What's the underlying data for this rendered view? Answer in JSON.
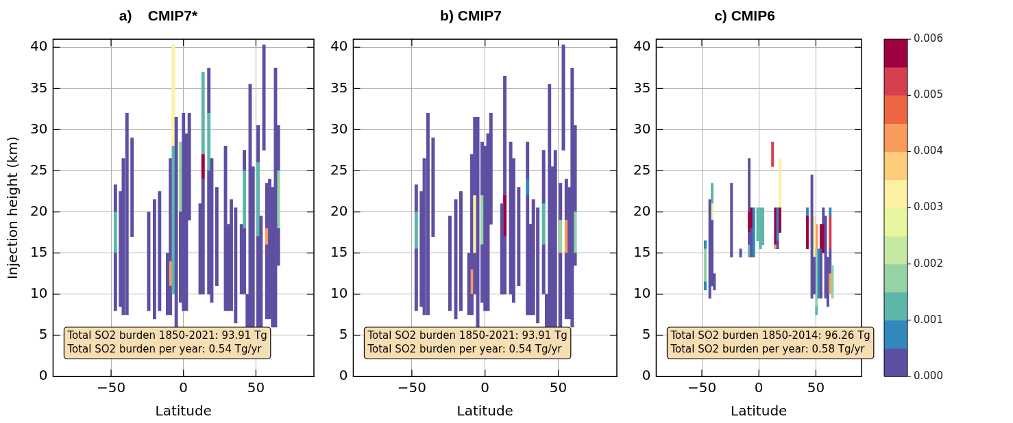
{
  "chart_data": [
    {
      "type": "bar",
      "title": "a)    CMIP7*",
      "xlabel": "Latitude",
      "ylabel": "Injection height (km)",
      "xlim": [
        -90,
        90
      ],
      "xticks": [
        -50,
        0,
        50
      ],
      "ylim": [
        0,
        41
      ],
      "yticks": [
        0,
        5,
        10,
        15,
        20,
        25,
        30,
        35,
        40
      ],
      "grid": true,
      "annotations": [
        "Total SO2 burden 1850-2021: 93.91 Tg",
        "Total SO2 burden per year: 0.54 Tg/yr"
      ],
      "x": [
        -47,
        -43.5,
        -41.5,
        -39,
        -35.5,
        -24,
        -20,
        -16.5,
        -11,
        -9,
        -7,
        -5,
        -2,
        0,
        2,
        4,
        11.5,
        13.5,
        17.5,
        19.5,
        23,
        29,
        31,
        33,
        36,
        40,
        42,
        44,
        46,
        48,
        51.5,
        53.5,
        55.5,
        57.5,
        59.5,
        61.5,
        63.5,
        65.5
      ],
      "series": [
        {
          "base": [
            8,
            8.5,
            7.5,
            7.5,
            17,
            8,
            7,
            8,
            7.5,
            7.5,
            10,
            6,
            9,
            8,
            8,
            19,
            10,
            10,
            10,
            9,
            11,
            8,
            8,
            8,
            6.5,
            10,
            10,
            6,
            6,
            6,
            6,
            6,
            27.5,
            7,
            7,
            6,
            6,
            13.5
          ],
          "values": [
            7,
            14,
            19,
            24.5,
            12,
            12,
            14.5,
            14.5,
            7.5,
            3.5,
            18,
            25.5,
            11,
            24,
            21.5,
            13,
            11,
            14,
            15,
            17.5,
            12,
            20,
            10.5,
            13.5,
            14,
            8.5,
            8,
            4,
            29.5,
            19.5,
            11,
            13.5,
            12.8,
            9,
            17,
            17,
            31.5,
            4.5
          ],
          "colors": [
            "#5e4fa2",
            "#5e4fa2",
            "#5e4fa2",
            "#5e4fa2",
            "#5e4fa2",
            "#5e4fa2",
            "#5e4fa2",
            "#5e4fa2",
            "#5e4fa2",
            "#5e4fa2",
            "#5db7a9",
            "#5e4fa2",
            "#5e4fa2",
            "#5e4fa2",
            "#5e4fa2",
            "#5e4fa2",
            "#5e4fa2",
            "#5e4fa2",
            "#5e4fa2",
            "#5e4fa2",
            "#5e4fa2",
            "#5e4fa2",
            "#5e4fa2",
            "#5e4fa2",
            "#5e4fa2",
            "#5e4fa2",
            "#5e4fa2",
            "#5e4fa2",
            "#5e4fa2",
            "#5e4fa2",
            "#5e4fa2",
            "#5e4fa2",
            "#5e4fa2",
            "#5e4fa2",
            "#5e4fa2",
            "#5e4fa2",
            "#5e4fa2",
            "#5e4fa2"
          ]
        },
        {
          "base": [
            15,
            null,
            null,
            null,
            null,
            null,
            null,
            null,
            null,
            11,
            28,
            null,
            20,
            null,
            null,
            null,
            null,
            24,
            25,
            null,
            null,
            null,
            null,
            null,
            null,
            null,
            18,
            null,
            null,
            null,
            17,
            null,
            null,
            16,
            null,
            null,
            null,
            18
          ],
          "values": [
            5,
            null,
            null,
            null,
            null,
            null,
            null,
            null,
            null,
            3,
            12.3,
            null,
            8.5,
            null,
            null,
            null,
            null,
            3,
            7,
            null,
            null,
            null,
            null,
            null,
            null,
            null,
            7,
            null,
            null,
            null,
            9,
            null,
            null,
            2,
            null,
            null,
            null,
            7
          ],
          "colors": [
            "#5db7a9",
            null,
            null,
            null,
            null,
            null,
            null,
            null,
            null,
            "#f99b5a",
            "#fdf1a4",
            null,
            "#94d4a4",
            null,
            null,
            null,
            null,
            "#9e0142",
            "#5db7a9",
            null,
            null,
            null,
            null,
            null,
            null,
            null,
            "#5db7a9",
            null,
            null,
            null,
            "#5db7a9",
            null,
            null,
            "#f99b5a",
            null,
            null,
            null,
            "#94d4a4"
          ]
        },
        {
          "base": [
            20,
            null,
            null,
            null,
            null,
            null,
            null,
            null,
            null,
            14,
            null,
            null,
            null,
            null,
            null,
            null,
            null,
            27,
            32,
            null,
            null,
            null,
            null,
            null,
            null,
            null,
            25,
            null,
            null,
            null,
            26,
            null,
            null,
            18,
            null,
            null,
            null,
            25
          ],
          "values": [
            3.3,
            null,
            null,
            null,
            null,
            null,
            null,
            null,
            null,
            12.5,
            null,
            null,
            null,
            null,
            null,
            null,
            null,
            10,
            5.5,
            null,
            null,
            null,
            null,
            null,
            null,
            null,
            2.5,
            null,
            null,
            null,
            4.5,
            null,
            null,
            5.5,
            null,
            null,
            null,
            5.5
          ],
          "colors": [
            "#5e4fa2",
            null,
            null,
            null,
            null,
            null,
            null,
            null,
            null,
            "#5e4fa2",
            null,
            null,
            null,
            null,
            null,
            null,
            null,
            "#5db7a9",
            "#5e4fa2",
            null,
            null,
            null,
            null,
            null,
            null,
            null,
            "#5e4fa2",
            null,
            null,
            null,
            "#5e4fa2",
            null,
            null,
            "#5e4fa2",
            null,
            null,
            null,
            "#5e4fa2"
          ]
        }
      ]
    },
    {
      "type": "bar",
      "title": "b) CMIP7",
      "xlabel": "Latitude",
      "xlim": [
        -90,
        90
      ],
      "xticks": [
        -50,
        0,
        50
      ],
      "ylim": [
        0,
        41
      ],
      "yticks": [
        0,
        5,
        10,
        15,
        20,
        25,
        30,
        35,
        40
      ],
      "grid": true,
      "annotations": [
        "Total SO2 burden 1850-2021: 93.91 Tg",
        "Total SO2 burden per year: 0.54 Tg/yr"
      ],
      "x": [
        -47,
        -43.5,
        -41.5,
        -39,
        -35.5,
        -24,
        -20,
        -16.5,
        -11,
        -9,
        -7,
        -5,
        -2,
        0,
        2,
        4,
        11.5,
        13.5,
        17.5,
        19.5,
        23,
        29,
        31,
        33,
        36,
        40,
        42,
        44,
        46,
        48,
        51.5,
        53.5,
        55.5,
        57.5,
        59.5,
        61.5
      ],
      "series": [
        {
          "base": [
            8,
            8.5,
            7.5,
            7.5,
            17,
            8,
            7,
            8,
            7.5,
            7.5,
            10,
            6,
            9,
            8,
            8,
            18.5,
            10,
            10,
            10,
            9,
            11,
            7.5,
            7.5,
            7.5,
            6.5,
            10,
            6,
            6,
            6,
            6,
            6,
            27.5,
            7,
            7,
            6,
            13.5
          ],
          "values": [
            7.5,
            14,
            19,
            24.5,
            12,
            11.5,
            14.5,
            14.5,
            7.5,
            2.5,
            5,
            25.5,
            7,
            20,
            21.5,
            13.5,
            11,
            7,
            18.5,
            17.5,
            12,
            14.5,
            11,
            14,
            14,
            6,
            4,
            29.5,
            19.5,
            21.5,
            9,
            12.8,
            8,
            16,
            31.5,
            1.5
          ],
          "color": "#5e4fa2"
        },
        {
          "base": [
            15.5,
            null,
            null,
            null,
            null,
            null,
            null,
            null,
            null,
            10,
            15,
            null,
            16,
            null,
            null,
            null,
            null,
            17,
            null,
            null,
            null,
            22,
            null,
            null,
            null,
            16,
            null,
            null,
            null,
            null,
            15,
            null,
            15,
            null,
            null,
            15
          ],
          "values": [
            4.5,
            null,
            null,
            null,
            null,
            null,
            null,
            null,
            null,
            3,
            7,
            null,
            6,
            null,
            null,
            null,
            null,
            5,
            null,
            null,
            null,
            2,
            null,
            null,
            null,
            5,
            null,
            null,
            null,
            null,
            4,
            null,
            4,
            null,
            null,
            5
          ],
          "colors": [
            "#5db7a9",
            null,
            null,
            null,
            null,
            null,
            null,
            null,
            null,
            "#f99b5a",
            "#fdf1a4",
            null,
            "#94d4a4",
            null,
            null,
            null,
            null,
            "#9e0142",
            null,
            null,
            null,
            "#3288bd",
            null,
            null,
            null,
            "#5db7a9",
            null,
            null,
            null,
            null,
            "#94d4a4",
            null,
            "#f99b5a",
            null,
            null,
            "#94d4a4"
          ]
        },
        {
          "base": [
            20,
            null,
            null,
            null,
            null,
            null,
            null,
            null,
            null,
            13,
            22,
            null,
            22,
            null,
            null,
            null,
            null,
            22,
            null,
            null,
            null,
            24,
            null,
            null,
            null,
            21,
            null,
            null,
            null,
            null,
            19,
            null,
            19,
            null,
            null,
            20
          ],
          "values": [
            3.3,
            null,
            null,
            null,
            null,
            null,
            null,
            null,
            null,
            14,
            9.5,
            null,
            6.5,
            null,
            null,
            null,
            null,
            14.5,
            null,
            null,
            null,
            4.5,
            null,
            null,
            null,
            6.5,
            null,
            null,
            null,
            null,
            4.5,
            null,
            5,
            null,
            null,
            10.5
          ],
          "color": "#5e4fa2"
        }
      ]
    },
    {
      "type": "bar",
      "title": "c) CMIP6",
      "xlabel": "Latitude",
      "xlim": [
        -90,
        90
      ],
      "xticks": [
        -50,
        0,
        50
      ],
      "ylim": [
        0,
        41
      ],
      "yticks": [
        0,
        5,
        10,
        15,
        20,
        25,
        30,
        35,
        40
      ],
      "grid": true,
      "clim": [
        0,
        0.006
      ],
      "cticks": [
        {
          "value": 0,
          "label": "0.000"
        },
        {
          "value": 0.001,
          "label": "0.001"
        },
        {
          "value": 0.002,
          "label": "0.002"
        },
        {
          "value": 0.003,
          "label": "0.003"
        },
        {
          "value": 0.004,
          "label": "0.004"
        },
        {
          "value": 0.005,
          "label": "0.005"
        },
        {
          "value": 0.006,
          "label": "0.006"
        }
      ],
      "annotations": [
        "Total SO2 burden 1850-2014: 96.26 Tg",
        "Total SO2 burden per year: 0.58 Tg/yr"
      ],
      "x": [
        -47,
        -43,
        -41,
        -39,
        -24,
        -16,
        -8.5,
        -6.5,
        -4.5,
        -1,
        1.5,
        3.5,
        12,
        14.5,
        16.5,
        18.5,
        42.5,
        46.5,
        48.5,
        50.5,
        52.5,
        54.5,
        56.5,
        58.5,
        60.5,
        62.5,
        64.5
      ],
      "series": [
        {
          "base": [
            10.5,
            9.5,
            11,
            10.5,
            14.5,
            14.5,
            14.5,
            14.5,
            14.5,
            16.5,
            15.5,
            16,
            25.5,
            15.5,
            15.5,
            17.5,
            15.5,
            9.5,
            10,
            7.5,
            9.5,
            9.5,
            15,
            9.5,
            8.5,
            10,
            9.5
          ],
          "values": [
            1,
            12,
            8,
            2,
            9,
            1,
            1.5,
            3.5,
            6,
            4,
            5,
            4.5,
            3,
            0.5,
            1,
            3,
            4,
            15,
            4.5,
            1,
            6,
            6,
            3.5,
            10,
            6,
            2.5,
            4
          ],
          "colors": [
            "#3288bd",
            "#5e4fa2",
            "#5e4fa2",
            "#5e4fa2",
            "#5e4fa2",
            "#5e4fa2",
            "#5db7a9",
            "#5e4fa2",
            "#3288bd",
            "#5db7a9",
            "#5db7a9",
            "#5db7a9",
            "#d5404e",
            "#f99b5a",
            "#5e4fa2",
            "#9e0142",
            "#9e0142",
            "#5e4fa2",
            "#5e4fa2",
            "#5db7a9",
            "#3288bd",
            "#5e4fa2",
            "#9e0142",
            "#5e4fa2",
            "#5e4fa2",
            "#f99b5a",
            "#94d4a4"
          ]
        },
        {
          "base": [
            11.5,
            null,
            19,
            null,
            null,
            null,
            16,
            18,
            null,
            null,
            null,
            null,
            null,
            16,
            16.5,
            20.5,
            19.5,
            null,
            14.5,
            8.5,
            null,
            15.5,
            18.5,
            null,
            null,
            12.5,
            null
          ],
          "values": [
            4,
            null,
            2,
            null,
            null,
            null,
            1.5,
            2.5,
            null,
            null,
            null,
            null,
            null,
            4.5,
            4,
            6,
            1,
            null,
            5,
            7,
            null,
            3,
            2,
            null,
            null,
            3,
            null
          ],
          "colors": [
            "#94d4a4",
            null,
            "#eaf59f",
            null,
            null,
            null,
            "#5e4fa2",
            "#9e0142",
            null,
            null,
            null,
            null,
            null,
            "#9e0142",
            "#3288bd",
            "#fdf1a4",
            "#3288bd",
            null,
            "#fdf1a4",
            "#94d4a4",
            null,
            "#9e0142",
            "#5e4fa2",
            null,
            null,
            "#5e4fa2",
            null
          ]
        },
        {
          "base": [
            15.5,
            null,
            21,
            null,
            null,
            null,
            17.5,
            null,
            null,
            null,
            null,
            null,
            null,
            null,
            null,
            null,
            null,
            null,
            null,
            15.5,
            null,
            null,
            null,
            null,
            null,
            15.5,
            null
          ],
          "values": [
            1,
            null,
            2.5,
            null,
            null,
            null,
            2.5,
            null,
            null,
            null,
            null,
            null,
            null,
            null,
            null,
            null,
            null,
            null,
            null,
            3,
            null,
            null,
            null,
            null,
            null,
            4,
            null
          ],
          "colors": [
            "#3288bd",
            null,
            "#5db7a9",
            null,
            null,
            null,
            "#9e0142",
            null,
            null,
            null,
            null,
            null,
            null,
            null,
            null,
            null,
            null,
            null,
            null,
            "#f99b5a",
            null,
            null,
            null,
            null,
            null,
            "#d5404e",
            null
          ]
        },
        {
          "base": [
            null,
            null,
            null,
            null,
            null,
            null,
            20,
            null,
            null,
            null,
            null,
            null,
            null,
            null,
            null,
            null,
            null,
            null,
            null,
            null,
            null,
            null,
            null,
            null,
            null,
            19.5,
            null
          ],
          "values": [
            null,
            null,
            null,
            null,
            null,
            null,
            6.5,
            null,
            null,
            null,
            null,
            null,
            null,
            null,
            null,
            null,
            null,
            null,
            null,
            null,
            null,
            null,
            null,
            null,
            null,
            1,
            null
          ],
          "colors": [
            null,
            null,
            null,
            null,
            null,
            null,
            "#5e4fa2",
            null,
            null,
            null,
            null,
            null,
            null,
            null,
            null,
            null,
            null,
            null,
            null,
            null,
            null,
            null,
            null,
            null,
            null,
            "#3288bd",
            null
          ]
        }
      ]
    }
  ]
}
